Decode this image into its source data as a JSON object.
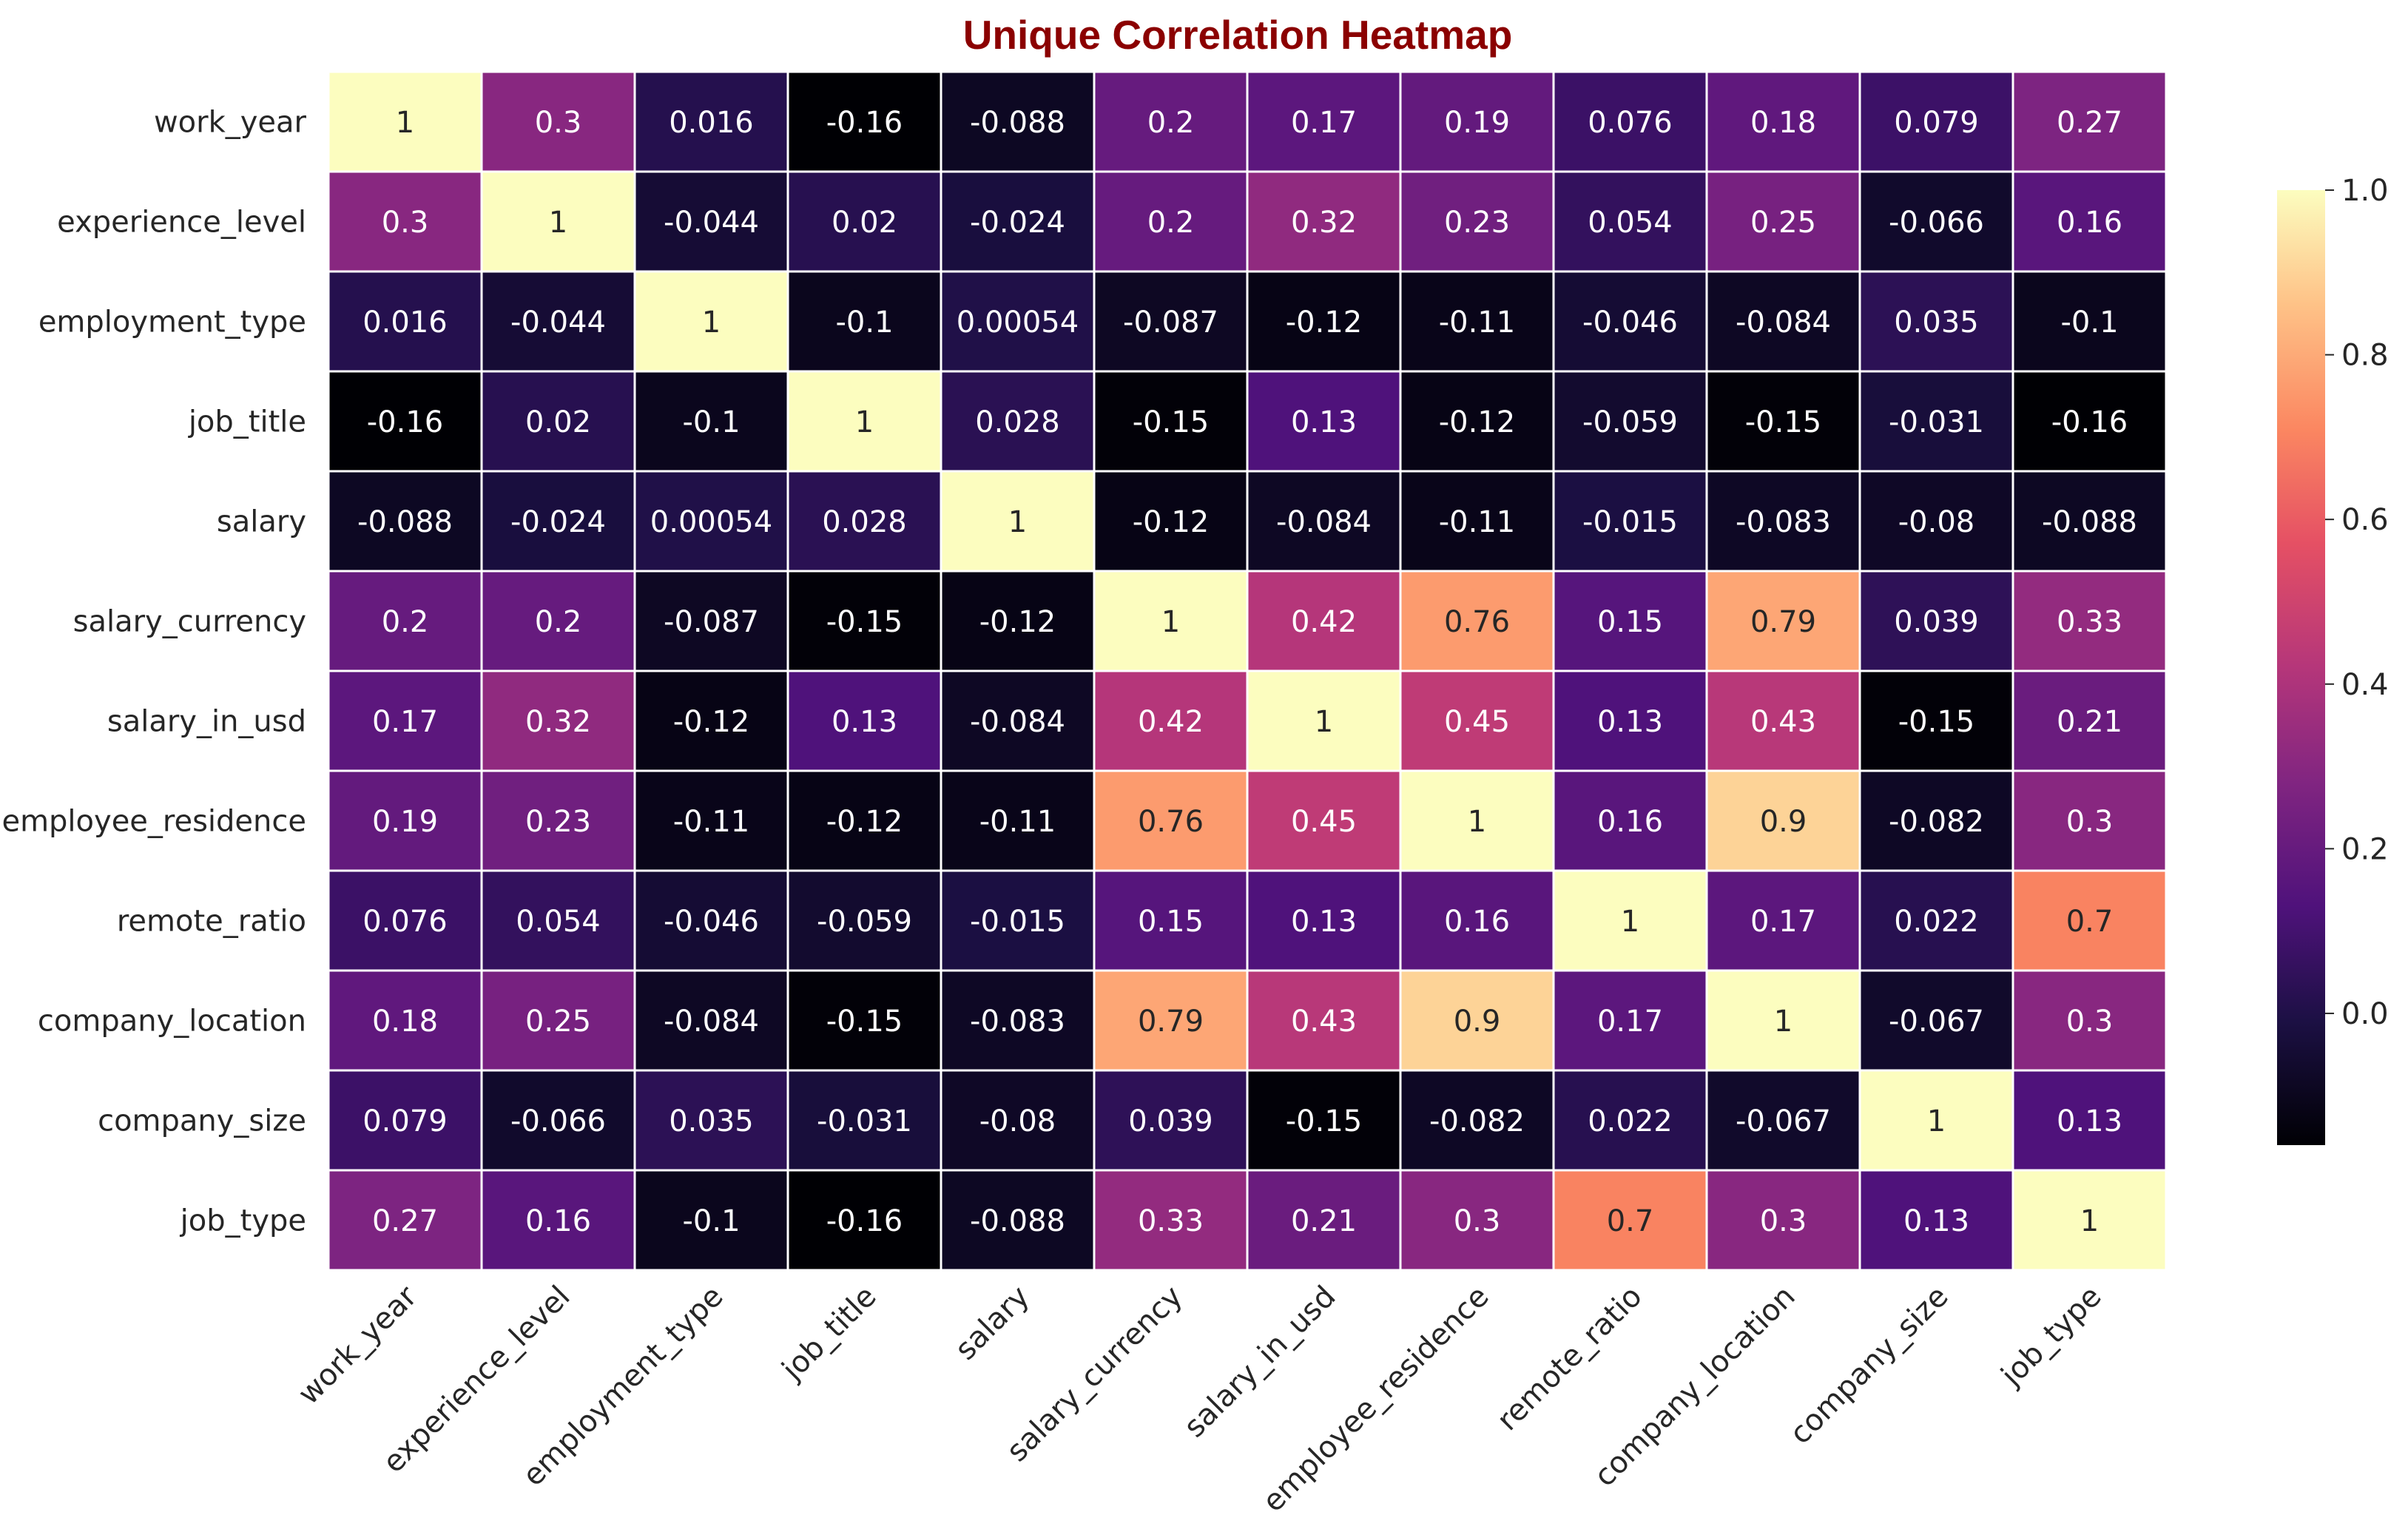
{
  "chart_data": {
    "type": "heatmap",
    "title": "Unique Correlation Heatmap",
    "title_color": "#8b0000",
    "colormap": "magma",
    "cell_border_color": "#ffffff",
    "labels": [
      "work_year",
      "experience_level",
      "employment_type",
      "job_title",
      "salary",
      "salary_currency",
      "salary_in_usd",
      "employee_residence",
      "remote_ratio",
      "company_location",
      "company_size",
      "job_type"
    ],
    "values": [
      [
        1,
        0.3,
        0.016,
        -0.16,
        -0.088,
        0.2,
        0.17,
        0.19,
        0.076,
        0.18,
        0.079,
        0.27
      ],
      [
        0.3,
        1,
        -0.044,
        0.02,
        -0.024,
        0.2,
        0.32,
        0.23,
        0.054,
        0.25,
        -0.066,
        0.16
      ],
      [
        0.016,
        -0.044,
        1,
        -0.1,
        0.00054,
        -0.087,
        -0.12,
        -0.11,
        -0.046,
        -0.084,
        0.035,
        -0.1
      ],
      [
        -0.16,
        0.02,
        -0.1,
        1,
        0.028,
        -0.15,
        0.13,
        -0.12,
        -0.059,
        -0.15,
        -0.031,
        -0.16
      ],
      [
        -0.088,
        -0.024,
        0.00054,
        0.028,
        1,
        -0.12,
        -0.084,
        -0.11,
        -0.015,
        -0.083,
        -0.08,
        -0.088
      ],
      [
        0.2,
        0.2,
        -0.087,
        -0.15,
        -0.12,
        1,
        0.42,
        0.76,
        0.15,
        0.79,
        0.039,
        0.33
      ],
      [
        0.17,
        0.32,
        -0.12,
        0.13,
        -0.084,
        0.42,
        1,
        0.45,
        0.13,
        0.43,
        -0.15,
        0.21
      ],
      [
        0.19,
        0.23,
        -0.11,
        -0.12,
        -0.11,
        0.76,
        0.45,
        1,
        0.16,
        0.9,
        -0.082,
        0.3
      ],
      [
        0.076,
        0.054,
        -0.046,
        -0.059,
        -0.015,
        0.15,
        0.13,
        0.16,
        1,
        0.17,
        0.022,
        0.7
      ],
      [
        0.18,
        0.25,
        -0.084,
        -0.15,
        -0.083,
        0.79,
        0.43,
        0.9,
        0.17,
        1,
        -0.067,
        0.3
      ],
      [
        0.079,
        -0.066,
        0.035,
        -0.031,
        -0.08,
        0.039,
        -0.15,
        -0.082,
        0.022,
        -0.067,
        1,
        0.13
      ],
      [
        0.27,
        0.16,
        -0.1,
        -0.16,
        -0.088,
        0.33,
        0.21,
        0.3,
        0.7,
        0.3,
        0.13,
        1
      ]
    ],
    "vmin": -0.16,
    "vmax": 1.0,
    "colorbar_ticks": [
      "0.0",
      "0.2",
      "0.4",
      "0.6",
      "0.8",
      "1.0"
    ],
    "legend": "colorbar-right",
    "grid": false
  }
}
